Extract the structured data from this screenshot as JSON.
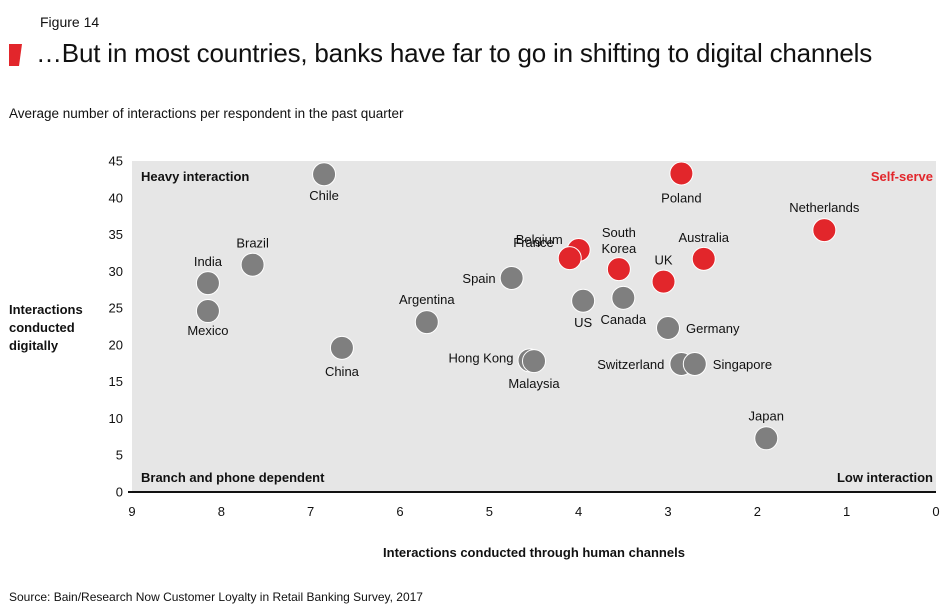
{
  "figure_label": "Figure 14",
  "title": "…But in most countries, banks have far to go in shifting to digital channels",
  "subtitle": "Average number of interactions per respondent in the past quarter",
  "ylabel": "Interactions conducted digitally",
  "xlabel": "Interactions conducted through human channels",
  "source": "Source: Bain/Research Now Customer Loyalty in Retail Banking Survey, 2017",
  "colors": {
    "accent": "#e2262b",
    "gray": "#7f7f7f",
    "plot_bg": "#e6e6e6"
  },
  "chart_data": {
    "type": "scatter",
    "xlabel": "Interactions conducted through human channels",
    "ylabel": "Interactions conducted digitally",
    "xlim": [
      9,
      0
    ],
    "ylim": [
      0,
      45
    ],
    "x_reversed": true,
    "x_ticks": [
      9,
      8,
      7,
      6,
      5,
      4,
      3,
      2,
      1,
      0
    ],
    "y_ticks": [
      0,
      5,
      10,
      15,
      20,
      25,
      30,
      35,
      40,
      45
    ],
    "grid": false,
    "quadrant_labels": {
      "top_left": "Heavy interaction",
      "top_right": "Self-serve",
      "bottom_left": "Branch and phone dependent",
      "bottom_right": "Low interaction"
    },
    "points": [
      {
        "label": "Chile",
        "x": 6.85,
        "y": 43.2,
        "highlight": false
      },
      {
        "label": "Poland",
        "x": 2.85,
        "y": 43.3,
        "highlight": true
      },
      {
        "label": "Netherlands",
        "x": 1.25,
        "y": 35.6,
        "highlight": true
      },
      {
        "label": "Brazil",
        "x": 7.65,
        "y": 30.9,
        "highlight": false
      },
      {
        "label": "India",
        "x": 8.15,
        "y": 28.4,
        "highlight": false
      },
      {
        "label": "Mexico",
        "x": 8.15,
        "y": 24.6,
        "highlight": false
      },
      {
        "label": "China",
        "x": 6.65,
        "y": 19.6,
        "highlight": false
      },
      {
        "label": "Argentina",
        "x": 5.7,
        "y": 23.1,
        "highlight": false
      },
      {
        "label": "Spain",
        "x": 4.75,
        "y": 29.1,
        "highlight": false
      },
      {
        "label": "Belgium",
        "x": 4.0,
        "y": 32.9,
        "highlight": true
      },
      {
        "label": "France",
        "x": 4.1,
        "y": 31.8,
        "highlight": true
      },
      {
        "label": "South Korea",
        "x": 3.55,
        "y": 30.3,
        "highlight": true
      },
      {
        "label": "UK",
        "x": 3.05,
        "y": 28.6,
        "highlight": true
      },
      {
        "label": "Australia",
        "x": 2.6,
        "y": 31.7,
        "highlight": true
      },
      {
        "label": "US",
        "x": 3.95,
        "y": 26.0,
        "highlight": false
      },
      {
        "label": "Canada",
        "x": 3.5,
        "y": 26.4,
        "highlight": false
      },
      {
        "label": "Germany",
        "x": 3.0,
        "y": 22.3,
        "highlight": false
      },
      {
        "label": "Hong Kong",
        "x": 4.55,
        "y": 17.9,
        "highlight": false
      },
      {
        "label": "Malaysia",
        "x": 4.5,
        "y": 17.8,
        "highlight": false
      },
      {
        "label": "Switzerland",
        "x": 2.85,
        "y": 17.4,
        "highlight": false
      },
      {
        "label": "Singapore",
        "x": 2.7,
        "y": 17.4,
        "highlight": false
      },
      {
        "label": "Japan",
        "x": 1.9,
        "y": 7.3,
        "highlight": false
      }
    ]
  }
}
